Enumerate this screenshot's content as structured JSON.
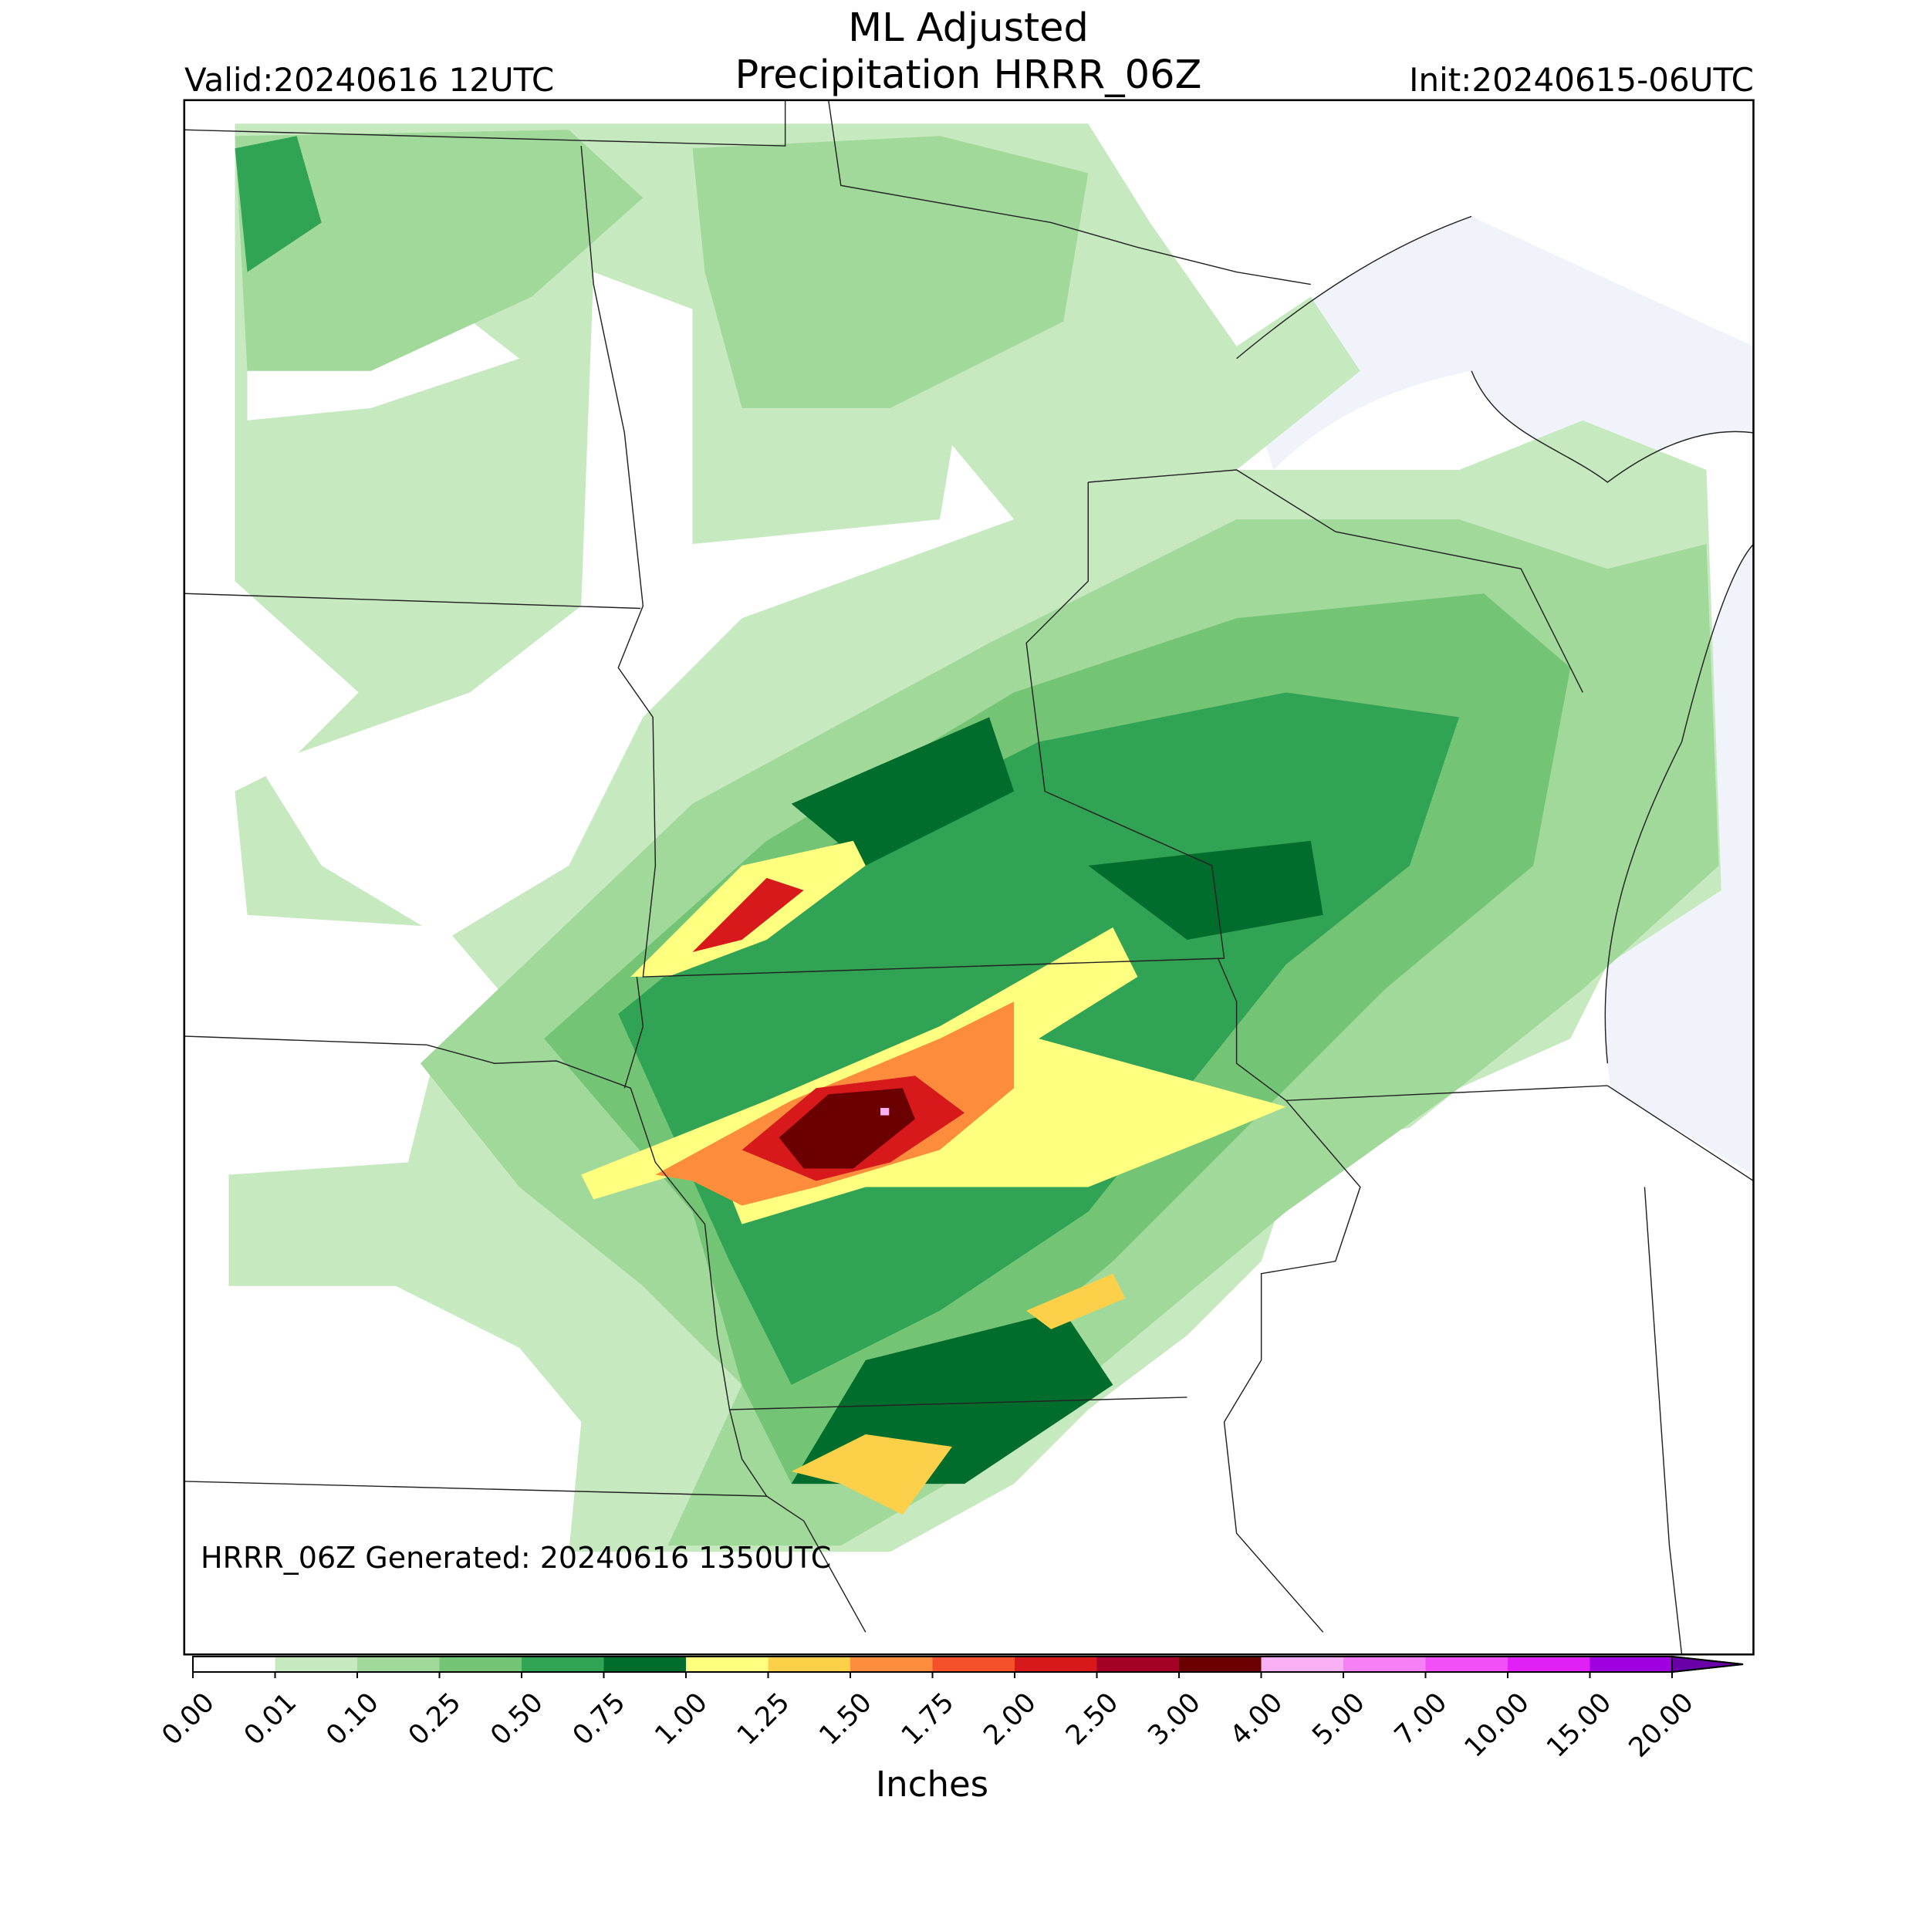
{
  "header": {
    "title_lines": [
      "ML Adjusted",
      "Precipitation HRRR_06Z"
    ],
    "valid": "Valid:20240616 12UTC",
    "init": "Init:20240615-06UTC"
  },
  "map": {
    "generated": "HRRR_06Z Generated: 20240616 1350UTC"
  },
  "colorbar": {
    "label": "Inches",
    "ticks": [
      {
        "value": 0,
        "label": "0.00"
      },
      {
        "value": 0.01,
        "label": "0.01"
      },
      {
        "value": 0.1,
        "label": "0.10"
      },
      {
        "value": 0.25,
        "label": "0.25"
      },
      {
        "value": 0.5,
        "label": "0.50"
      },
      {
        "value": 0.75,
        "label": "0.75"
      },
      {
        "value": 1,
        "label": "1.00"
      },
      {
        "value": 1.25,
        "label": "1.25"
      },
      {
        "value": 1.5,
        "label": "1.50"
      },
      {
        "value": 1.75,
        "label": "1.75"
      },
      {
        "value": 2,
        "label": "2.00"
      },
      {
        "value": 2.5,
        "label": "2.50"
      },
      {
        "value": 3,
        "label": "3.00"
      },
      {
        "value": 4,
        "label": "4.00"
      },
      {
        "value": 5,
        "label": "5.00"
      },
      {
        "value": 7,
        "label": "7.00"
      },
      {
        "value": 10,
        "label": "10.00"
      },
      {
        "value": 15,
        "label": "15.00"
      },
      {
        "value": 20,
        "label": "20.00"
      }
    ],
    "colors": [
      "#ffffff",
      "#c7e9c0",
      "#a1d99b",
      "#74c476",
      "#31a354",
      "#006d2c",
      "#ffff80",
      "#fdd049",
      "#fd8d3c",
      "#f4512b",
      "#d7191c",
      "#a50026",
      "#6b0000",
      "#f9b0f5",
      "#f680f5",
      "#f050f5",
      "#e020f5",
      "#a000e0"
    ],
    "extend_color": "#6a00a8"
  }
}
